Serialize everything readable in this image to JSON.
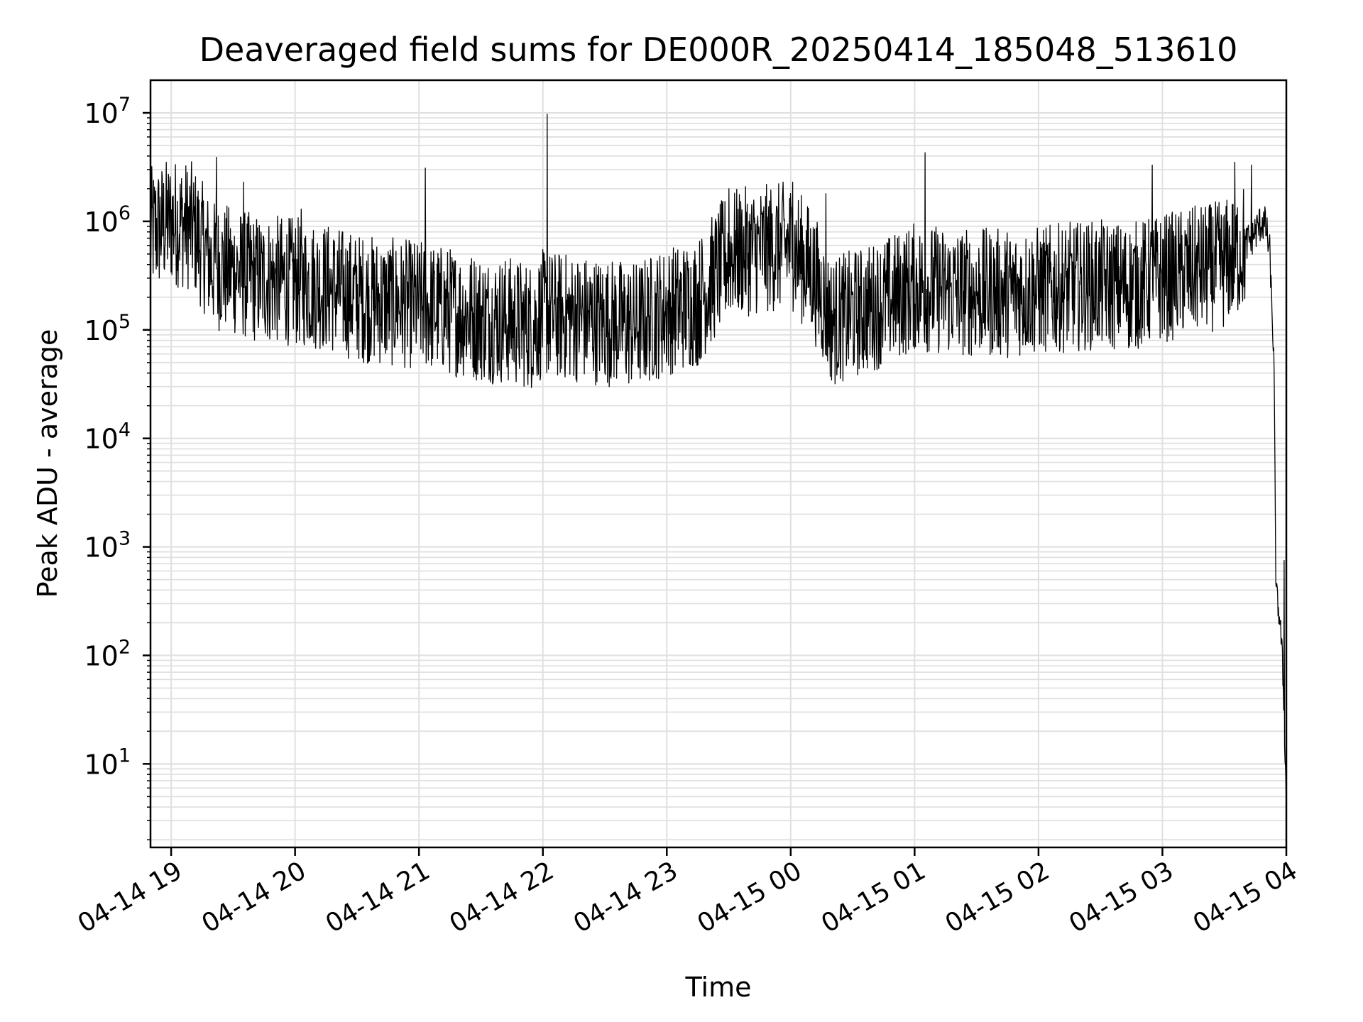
{
  "chart_data": {
    "type": "line",
    "title": "Deaveraged field sums for DE000R_20250414_185048_513610",
    "xlabel": "Time",
    "ylabel": "Peak ADU - average",
    "yscale": "log",
    "grid": true,
    "line_color": "#000000",
    "grid_color": "#e0e0e0",
    "x_range": [
      "04-14 18:50",
      "04-15 04:00"
    ],
    "ylim": [
      1.7,
      20000000
    ],
    "x_ticks": [
      "04-14 19",
      "04-14 20",
      "04-14 21",
      "04-14 22",
      "04-14 23",
      "04-15 00",
      "04-15 01",
      "04-15 02",
      "04-15 03",
      "04-15 04"
    ],
    "y_ticks": [
      {
        "base": "10",
        "exp": "1",
        "value": 10
      },
      {
        "base": "10",
        "exp": "2",
        "value": 100
      },
      {
        "base": "10",
        "exp": "3",
        "value": 1000
      },
      {
        "base": "10",
        "exp": "4",
        "value": 10000
      },
      {
        "base": "10",
        "exp": "5",
        "value": 100000
      },
      {
        "base": "10",
        "exp": "6",
        "value": 1000000
      },
      {
        "base": "10",
        "exp": "7",
        "value": 10000000
      }
    ],
    "series": [
      {
        "x": [
          "04-14 18:50",
          "04-14 19:00",
          "04-14 19:10",
          "04-14 19:15",
          "04-14 19:20",
          "04-14 19:30",
          "04-14 19:40",
          "04-14 20:00",
          "04-14 20:15",
          "04-14 20:30",
          "04-14 20:45",
          "04-14 21:00",
          "04-14 21:15",
          "04-14 21:30",
          "04-14 21:45",
          "04-14 21:55",
          "04-14 22:00",
          "04-14 22:15",
          "04-14 22:30",
          "04-14 22:45",
          "04-14 23:00",
          "04-14 23:15",
          "04-14 23:30",
          "04-14 23:45",
          "04-15 00:00",
          "04-15 00:10",
          "04-15 00:20",
          "04-15 00:35",
          "04-15 00:50",
          "04-15 01:00",
          "04-15 01:15",
          "04-15 01:30",
          "04-15 01:45",
          "04-15 02:00",
          "04-15 02:15",
          "04-15 02:30",
          "04-15 02:45",
          "04-15 03:00",
          "04-15 03:15",
          "04-15 03:30",
          "04-15 03:40",
          "04-15 03:45",
          "04-15 03:48",
          "04-15 03:50",
          "04-15 03:52",
          "04-15 03:54",
          "04-15 03:55",
          "04-15 03:57",
          "04-15 03:58",
          "04-15 03:59",
          "04-15 04:00"
        ],
        "y": [
          800000,
          1000000,
          900000,
          600000,
          400000,
          350000,
          300000,
          280000,
          250000,
          200000,
          180000,
          170000,
          150000,
          130000,
          120000,
          110000,
          140000,
          130000,
          120000,
          110000,
          150000,
          180000,
          500000,
          550000,
          600000,
          350000,
          120000,
          150000,
          200000,
          250000,
          230000,
          220000,
          220000,
          230000,
          250000,
          260000,
          250000,
          300000,
          350000,
          400000,
          600000,
          800000,
          1000000,
          900000,
          500000,
          50000,
          400,
          200,
          100,
          25,
          4
        ],
        "spikes": [
          {
            "x": "04-14 19:22",
            "y": 3900000
          },
          {
            "x": "04-14 19:35",
            "y": 2300000
          },
          {
            "x": "04-14 20:03",
            "y": 1300000
          },
          {
            "x": "04-14 21:03",
            "y": 3100000
          },
          {
            "x": "04-14 22:02",
            "y": 9700000
          },
          {
            "x": "04-14 23:30",
            "y": 2000000
          },
          {
            "x": "04-15 00:01",
            "y": 2300000
          },
          {
            "x": "04-15 00:17",
            "y": 1800000
          },
          {
            "x": "04-15 01:05",
            "y": 4300000
          },
          {
            "x": "04-15 02:55",
            "y": 3300000
          },
          {
            "x": "04-15 03:35",
            "y": 3500000
          },
          {
            "x": "04-15 03:43",
            "y": 3300000
          },
          {
            "x": "04-15 03:59",
            "y": 750
          }
        ]
      }
    ]
  }
}
